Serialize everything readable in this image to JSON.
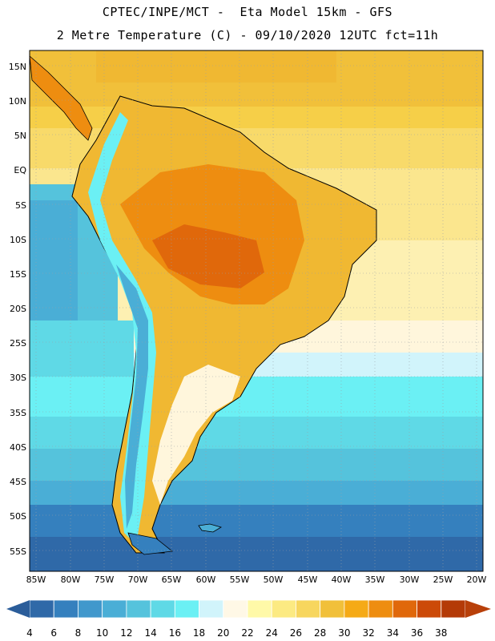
{
  "header": {
    "line1": "CPTEC/INPE/MCT -  Eta Model 15km - GFS",
    "line2": "2 Metre Temperature (C) - 09/10/2020 12UTC fct=11h"
  },
  "map": {
    "lat_labels": [
      "15N",
      "10N",
      "5N",
      "EQ",
      "5S",
      "10S",
      "15S",
      "20S",
      "25S",
      "30S",
      "35S",
      "40S",
      "45S",
      "50S",
      "55S"
    ],
    "lon_labels": [
      "85W",
      "80W",
      "75W",
      "70W",
      "65W",
      "60W",
      "55W",
      "50W",
      "45W",
      "40W",
      "35W",
      "30W",
      "25W",
      "20W"
    ],
    "grid": "on",
    "projection": "cylindrical lat-lon"
  },
  "colorbar": {
    "ticks": [
      "4",
      "6",
      "8",
      "10",
      "12",
      "14",
      "16",
      "18",
      "20",
      "22",
      "24",
      "26",
      "28",
      "30",
      "32",
      "34",
      "36",
      "38"
    ],
    "colors": [
      "#2f69a8",
      "#3580be",
      "#4198cc",
      "#4aaed6",
      "#55c3dc",
      "#5fd9e6",
      "#6bf0f4",
      "#d1f4fb",
      "#fff8e6",
      "#fff9a8",
      "#fcea82",
      "#f7d65e",
      "#f1c03a",
      "#f5aa16",
      "#ee8d10",
      "#e0680b",
      "#cc4a08",
      "#b43a07"
    ],
    "low_color": "#2b5d9a",
    "high_color": "#b8400a"
  }
}
